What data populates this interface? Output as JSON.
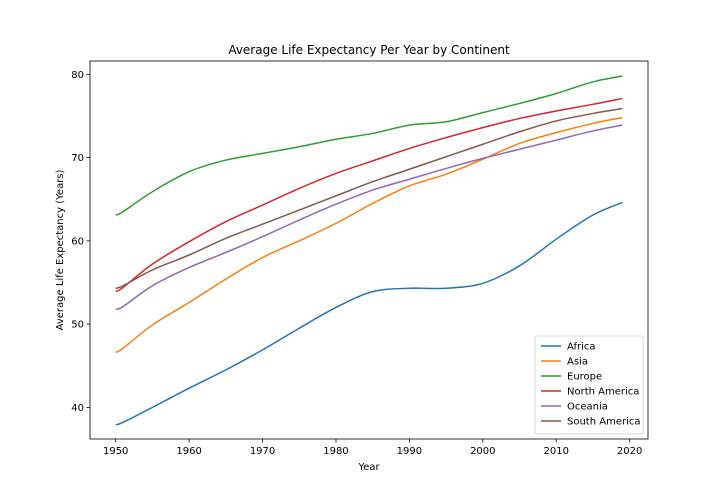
{
  "chart_data": {
    "type": "line",
    "title": "Average Life Expectancy Per Year by Continent",
    "xlabel": "Year",
    "ylabel": "Average Life Expectancy (Years)",
    "xlim": [
      1946.5,
      2022.5
    ],
    "ylim": [
      36.2,
      81.6
    ],
    "xticks": [
      1950,
      1960,
      1970,
      1980,
      1990,
      2000,
      2010,
      2020
    ],
    "yticks": [
      40,
      50,
      60,
      70,
      80
    ],
    "grid": false,
    "legend_position": "lower-right",
    "x": [
      1950,
      1951,
      1955,
      1960,
      1965,
      1970,
      1975,
      1980,
      1985,
      1990,
      1995,
      2000,
      2005,
      2010,
      2015,
      2019
    ],
    "series": [
      {
        "name": "Africa",
        "color": "#1f77b4",
        "values": [
          37.9,
          38.2,
          40.0,
          42.3,
          44.5,
          46.9,
          49.5,
          52.0,
          53.9,
          54.3,
          54.3,
          54.9,
          57.0,
          60.2,
          63.1,
          64.6
        ]
      },
      {
        "name": "Asia",
        "color": "#ff7f0e",
        "values": [
          46.6,
          47.1,
          49.9,
          52.6,
          55.4,
          58.0,
          60.0,
          62.1,
          64.5,
          66.6,
          68.0,
          69.8,
          71.7,
          73.0,
          74.1,
          74.8
        ]
      },
      {
        "name": "Europe",
        "color": "#2ca02c",
        "values": [
          63.1,
          63.5,
          65.9,
          68.3,
          69.7,
          70.5,
          71.3,
          72.2,
          72.9,
          73.9,
          74.3,
          75.4,
          76.5,
          77.7,
          79.1,
          79.8
        ]
      },
      {
        "name": "North America",
        "color": "#d62728",
        "values": [
          53.9,
          54.4,
          57.2,
          59.9,
          62.3,
          64.3,
          66.3,
          68.1,
          69.6,
          71.1,
          72.4,
          73.6,
          74.7,
          75.6,
          76.4,
          77.1
        ]
      },
      {
        "name": "Oceania",
        "color": "#9467bd",
        "values": [
          51.8,
          52.1,
          54.6,
          56.8,
          58.6,
          60.5,
          62.5,
          64.4,
          66.1,
          67.4,
          68.7,
          69.9,
          71.0,
          72.1,
          73.2,
          73.9
        ]
      },
      {
        "name": "South America",
        "color": "#8c564b",
        "values": [
          54.3,
          54.6,
          56.5,
          58.3,
          60.3,
          62.0,
          63.7,
          65.4,
          67.1,
          68.6,
          70.1,
          71.6,
          73.1,
          74.4,
          75.3,
          75.9
        ]
      }
    ]
  }
}
